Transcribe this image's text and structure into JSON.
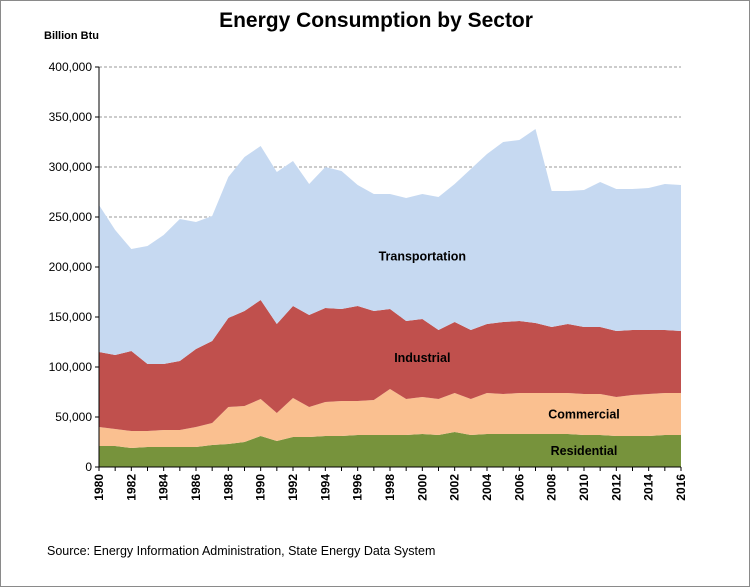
{
  "chart_data": {
    "type": "area",
    "stacked": true,
    "title": "Energy Consumption by Sector",
    "ylabel": "Billion Btu",
    "xlabel": "",
    "source": "Source: Energy Information Administration, State Energy Data System",
    "ylim": [
      0,
      400000
    ],
    "yticks": [
      0,
      50000,
      100000,
      150000,
      200000,
      250000,
      300000,
      350000,
      400000
    ],
    "ytick_labels": [
      "0",
      "50,000",
      "100,000",
      "150,000",
      "200,000",
      "250,000",
      "300,000",
      "350,000",
      "400,000"
    ],
    "xlim": [
      1980,
      2016
    ],
    "xticks": [
      1980,
      1982,
      1984,
      1986,
      1988,
      1990,
      1992,
      1994,
      1996,
      1998,
      2000,
      2002,
      2004,
      2006,
      2008,
      2010,
      2012,
      2014,
      2016
    ],
    "xtick_labels": [
      "1980",
      "1982",
      "1984",
      "1986",
      "1988",
      "1990",
      "1992",
      "1994",
      "1996",
      "1998",
      "2000",
      "2002",
      "2004",
      "2006",
      "2008",
      "2010",
      "2012",
      "2014",
      "2016"
    ],
    "grid": true,
    "x": [
      1980,
      1981,
      1982,
      1983,
      1984,
      1985,
      1986,
      1987,
      1988,
      1989,
      1990,
      1991,
      1992,
      1993,
      1994,
      1995,
      1996,
      1997,
      1998,
      1999,
      2000,
      2001,
      2002,
      2003,
      2004,
      2005,
      2006,
      2007,
      2008,
      2009,
      2010,
      2011,
      2012,
      2013,
      2014,
      2015,
      2016
    ],
    "series": [
      {
        "name": "Residential",
        "color": "#77933c",
        "values": [
          21000,
          21000,
          19000,
          20000,
          20000,
          20000,
          20000,
          22000,
          23000,
          25000,
          31000,
          26000,
          30000,
          30000,
          31000,
          31000,
          32000,
          32000,
          32000,
          32000,
          33000,
          32000,
          35000,
          32000,
          33000,
          33000,
          33000,
          33000,
          33000,
          33000,
          32000,
          32000,
          31000,
          31000,
          31000,
          32000,
          32000
        ]
      },
      {
        "name": "Commercial",
        "color": "#fac090",
        "values": [
          19000,
          17000,
          17000,
          16000,
          17000,
          17000,
          20000,
          22000,
          37000,
          36000,
          37000,
          28000,
          39000,
          30000,
          34000,
          35000,
          34000,
          35000,
          46000,
          36000,
          37000,
          36000,
          39000,
          36000,
          41000,
          40000,
          41000,
          41000,
          41000,
          41000,
          41000,
          41000,
          39000,
          41000,
          42000,
          42000,
          42000
        ]
      },
      {
        "name": "Industrial",
        "color": "#c0504d",
        "values": [
          75000,
          74000,
          80000,
          67000,
          66000,
          69000,
          78000,
          82000,
          89000,
          95000,
          99000,
          89000,
          92000,
          92000,
          94000,
          92000,
          95000,
          89000,
          80000,
          78000,
          78000,
          69000,
          71000,
          69000,
          69000,
          72000,
          72000,
          70000,
          66000,
          69000,
          67000,
          67000,
          66000,
          65000,
          64000,
          63000,
          62000
        ]
      },
      {
        "name": "Transportation",
        "color": "#c6d9f1",
        "values": [
          147000,
          125000,
          102000,
          118000,
          129000,
          142000,
          127000,
          125000,
          141000,
          154000,
          154000,
          152000,
          145000,
          131000,
          141000,
          138000,
          121000,
          117000,
          115000,
          123000,
          125000,
          133000,
          138000,
          161000,
          170000,
          180000,
          181000,
          194000,
          136000,
          133000,
          137000,
          145000,
          142000,
          141000,
          142000,
          146000,
          146000
        ]
      }
    ]
  }
}
